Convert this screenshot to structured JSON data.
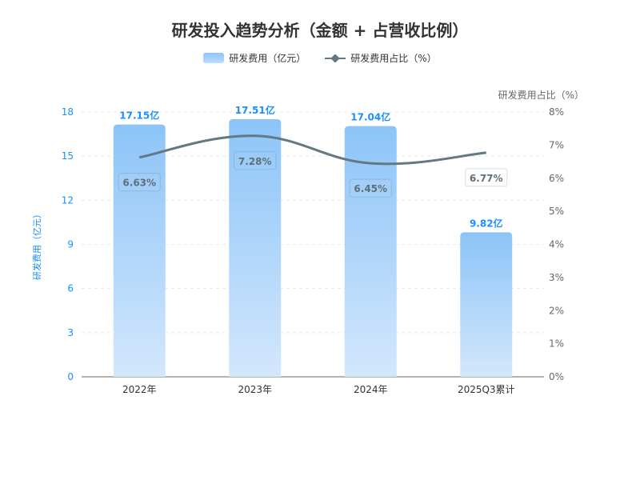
{
  "chart_data": {
    "type": "bar+line",
    "title": "研发投入趋势分析（金额 + 占营收比例）",
    "categories": [
      "2022年",
      "2023年",
      "2024年",
      "2025Q3累计"
    ],
    "series": [
      {
        "name": "研发费用（亿元）",
        "type": "bar",
        "axis": "left",
        "values": [
          17.15,
          17.51,
          17.04,
          9.82
        ],
        "labels": [
          "17.15亿",
          "17.51亿",
          "17.04亿",
          "9.82亿"
        ],
        "color": "#8cc4f8"
      },
      {
        "name": "研发费用占比（%）",
        "type": "line",
        "axis": "right",
        "values": [
          6.63,
          7.28,
          6.45,
          6.77
        ],
        "labels": [
          "6.63%",
          "7.28%",
          "6.45%",
          "6.77%"
        ],
        "color": "#647882"
      }
    ],
    "ylabel_left": "研发费用（亿元）",
    "ylabel_right": "研发费用占比（%）",
    "ylim_left": [
      0,
      18
    ],
    "yticks_left": [
      "0",
      "3",
      "6",
      "9",
      "12",
      "15",
      "18"
    ],
    "ylim_right": [
      0,
      8
    ],
    "yticks_right": [
      "0%",
      "1%",
      "2%",
      "3%",
      "4%",
      "5%",
      "6%",
      "7%",
      "8%"
    ],
    "grid": true,
    "legend": "top-center",
    "colors": {
      "left_axis": "#1890ff",
      "right_axis": "#666666"
    }
  }
}
